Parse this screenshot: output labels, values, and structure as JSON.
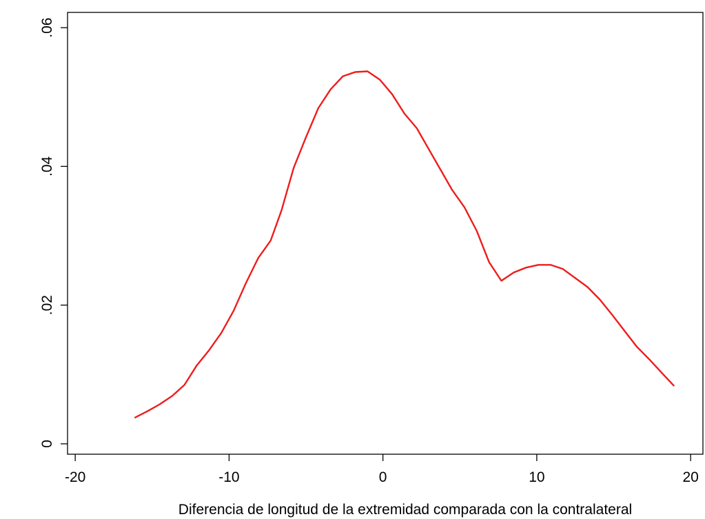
{
  "chart_data": {
    "type": "line",
    "title": "",
    "xlabel": "Diferencia de longitud de la extremidad comparada con la contralateral",
    "ylabel": "",
    "xlim": [
      -20.5,
      20.8
    ],
    "ylim": [
      -0.0015,
      0.0622
    ],
    "xticks": [
      -20,
      -10,
      0,
      10,
      20
    ],
    "xtick_labels": [
      "-20",
      "-10",
      "0",
      "10",
      "20"
    ],
    "yticks": [
      0,
      0.02,
      0.04,
      0.06
    ],
    "ytick_labels": [
      "0",
      ".02",
      ".04",
      ".06"
    ],
    "grid": false,
    "legend": "none",
    "series": [
      {
        "color": "#ee1c1c",
        "x": [
          -16.1,
          -15.3,
          -14.5,
          -13.7,
          -12.9,
          -12.1,
          -11.3,
          -10.5,
          -9.7,
          -8.9,
          -8.1,
          -7.3,
          -6.6,
          -5.8,
          -5.0,
          -4.2,
          -3.4,
          -2.6,
          -1.8,
          -1.0,
          -0.2,
          0.6,
          1.4,
          2.2,
          3.0,
          3.8,
          4.5,
          5.3,
          6.1,
          6.9,
          7.7,
          8.5,
          9.3,
          10.1,
          10.9,
          11.7,
          12.5,
          13.3,
          14.1,
          14.9,
          15.7,
          16.5,
          17.3,
          18.1,
          18.9
        ],
        "y": [
          0.0038,
          0.0047,
          0.0057,
          0.0069,
          0.0085,
          0.0113,
          0.0135,
          0.016,
          0.0192,
          0.0232,
          0.0268,
          0.0293,
          0.0336,
          0.0398,
          0.0442,
          0.0484,
          0.0511,
          0.053,
          0.0536,
          0.0537,
          0.0525,
          0.0504,
          0.0476,
          0.0455,
          0.0424,
          0.0393,
          0.0366,
          0.0341,
          0.0307,
          0.0262,
          0.0235,
          0.0247,
          0.0254,
          0.0258,
          0.0258,
          0.0252,
          0.0239,
          0.0226,
          0.0208,
          0.0186,
          0.0163,
          0.014,
          0.0122,
          0.0103,
          0.0084
        ]
      }
    ]
  }
}
